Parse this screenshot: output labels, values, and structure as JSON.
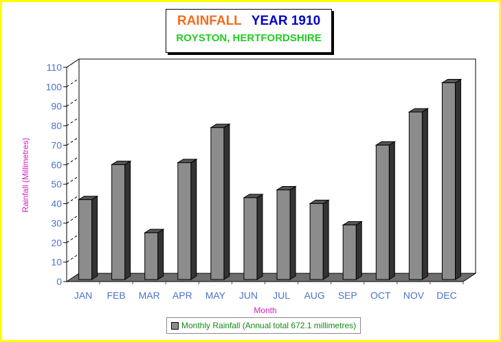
{
  "title": {
    "part1": "RAINFALL",
    "part2": "YEAR 1910",
    "subtitle": "ROYSTON, HERTFORDSHIRE"
  },
  "colors": {
    "background": "#ffff00",
    "title_part1": "#f26c1a",
    "title_part2": "#0000c8",
    "subtitle": "#22cc22",
    "bar": "#8c8c8c",
    "ticks": "#4a72c8",
    "axis_titles": "#d020c0"
  },
  "chart_data": {
    "type": "bar",
    "categories": [
      "JAN",
      "FEB",
      "MAR",
      "APR",
      "MAY",
      "JUN",
      "JUL",
      "AUG",
      "SEP",
      "OCT",
      "NOV",
      "DEC"
    ],
    "values": [
      41,
      59,
      24,
      60,
      78,
      42,
      46,
      39,
      28,
      69,
      86,
      101
    ],
    "xlabel": "Month",
    "ylabel": "Rainfall (Millimetres)",
    "ylim": [
      0,
      110
    ],
    "yticks": [
      0,
      10,
      20,
      30,
      40,
      50,
      60,
      70,
      80,
      90,
      100,
      110
    ],
    "grid": true,
    "legend": {
      "label": "Monthly Rainfall (Annual total 672.1 millimetres)",
      "placement": "bottom"
    }
  }
}
